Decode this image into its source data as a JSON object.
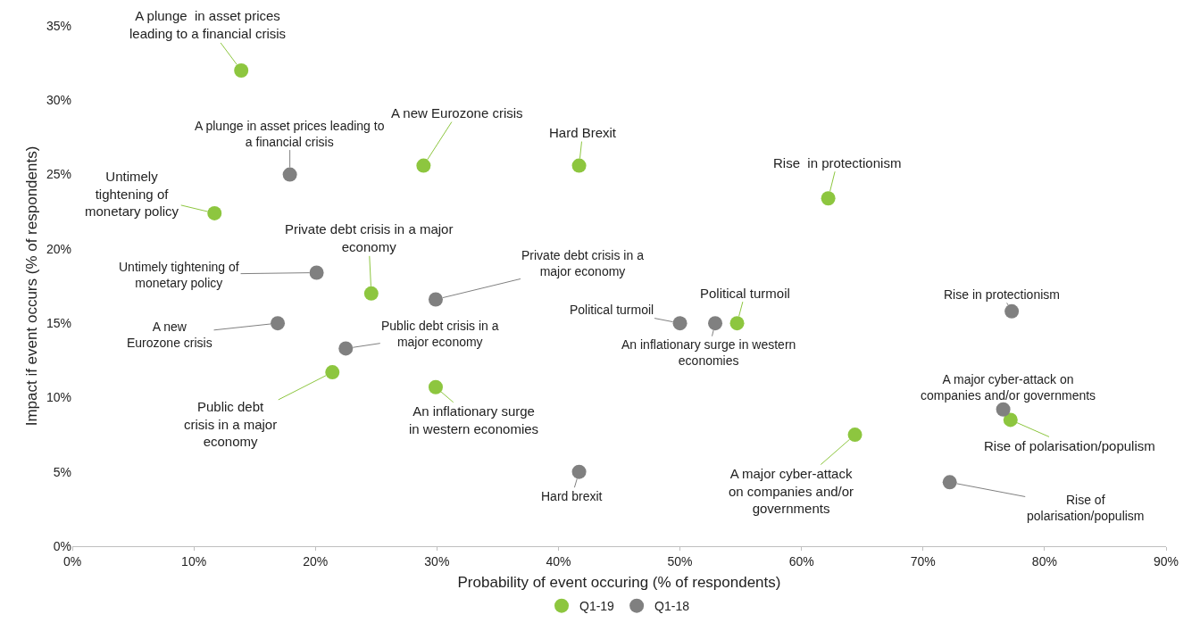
{
  "chart_data": {
    "type": "scatter",
    "xlabel": "Probability of event occuring (% of respondents)",
    "ylabel": "Impact if event occurs (% of respondents)",
    "xlim": [
      0,
      90
    ],
    "ylim": [
      0,
      35
    ],
    "xticks": [
      {
        "value": 0,
        "label": "0%"
      },
      {
        "value": 10,
        "label": "10%"
      },
      {
        "value": 20,
        "label": "20%"
      },
      {
        "value": 30,
        "label": "30%"
      },
      {
        "value": 40,
        "label": "40%"
      },
      {
        "value": 50,
        "label": "50%"
      },
      {
        "value": 60,
        "label": "60%"
      },
      {
        "value": 70,
        "label": "70%"
      },
      {
        "value": 80,
        "label": "80%"
      },
      {
        "value": 90,
        "label": "90%"
      }
    ],
    "yticks": [
      {
        "value": 0,
        "label": "0%"
      },
      {
        "value": 5,
        "label": "5%"
      },
      {
        "value": 10,
        "label": "10%"
      },
      {
        "value": 15,
        "label": "15%"
      },
      {
        "value": 20,
        "label": "20%"
      },
      {
        "value": 25,
        "label": "25%"
      },
      {
        "value": 30,
        "label": "30%"
      },
      {
        "value": 35,
        "label": "35%"
      }
    ],
    "grid": false,
    "legend": "bottom",
    "marker": "circle",
    "series": [
      {
        "name": "Q1-19",
        "color": "#8dc63f",
        "x": [
          13.9,
          28.9,
          41.7,
          11.7,
          62.2,
          24.6,
          54.7,
          21.4,
          29.9,
          64.4,
          77.2
        ],
        "values": [
          32.0,
          25.6,
          25.6,
          22.4,
          23.4,
          17.0,
          15.0,
          11.7,
          10.7,
          7.5,
          8.5
        ]
      },
      {
        "name": "Q1-18",
        "color": "#808080",
        "x": [
          17.9,
          20.1,
          29.9,
          16.9,
          22.5,
          50.0,
          52.9,
          77.3,
          76.6,
          41.7,
          72.2
        ],
        "values": [
          25.0,
          18.4,
          16.6,
          15.0,
          13.3,
          15.0,
          15.0,
          15.8,
          9.2,
          5.0,
          4.3
        ]
      }
    ],
    "annotations": [
      {
        "text": "A plunge  in asset prices\nleading to a financial crisis",
        "x": 13.9,
        "y": 32.0
      },
      {
        "text": "A new Eurozone crisis",
        "x": 28.9,
        "y": 25.6
      },
      {
        "text": "Hard Brexit",
        "x": 41.7,
        "y": 25.6
      },
      {
        "text": "Untimely\ntightening of\nmonetary policy",
        "x": 11.7,
        "y": 22.4
      },
      {
        "text": "Rise  in protectionism",
        "x": 62.2,
        "y": 23.4
      },
      {
        "text": "Private debt crisis in a major\neconomy",
        "x": 24.6,
        "y": 17.0
      },
      {
        "text": "Political turmoil",
        "x": 54.7,
        "y": 15.0
      },
      {
        "text": "Public debt\ncrisis in a major\neconomy",
        "x": 21.4,
        "y": 11.7
      },
      {
        "text": "An inflationary surge\nin western economies",
        "x": 29.9,
        "y": 10.7
      },
      {
        "text": "A major cyber-attack\non companies and/or\ngovernments",
        "x": 64.4,
        "y": 7.5
      },
      {
        "text": "Rise of polarisation/populism",
        "x": 77.2,
        "y": 8.5
      },
      {
        "text": "A plunge in asset prices leading to\na financial crisis",
        "x": 17.9,
        "y": 25.0
      },
      {
        "text": "Untimely tightening of\nmonetary policy",
        "x": 20.1,
        "y": 18.4
      },
      {
        "text": "Private debt crisis in a\nmajor economy",
        "x": 29.9,
        "y": 16.6
      },
      {
        "text": "A new\nEurozone crisis",
        "x": 16.9,
        "y": 15.0
      },
      {
        "text": "Public debt crisis in a\nmajor economy",
        "x": 22.5,
        "y": 13.3
      },
      {
        "text": "Political turmoil",
        "x": 50.0,
        "y": 15.0
      },
      {
        "text": "An inflationary surge in western\neconomies",
        "x": 52.9,
        "y": 15.0
      },
      {
        "text": "Rise in protectionism",
        "x": 77.3,
        "y": 15.8
      },
      {
        "text": "A major cyber-attack on\ncompanies and/or governments",
        "x": 76.6,
        "y": 9.2
      },
      {
        "text": "Hard brexit",
        "x": 41.7,
        "y": 5.0
      },
      {
        "text": "Rise of\npolarisation/populism",
        "x": 72.2,
        "y": 4.3
      }
    ]
  }
}
